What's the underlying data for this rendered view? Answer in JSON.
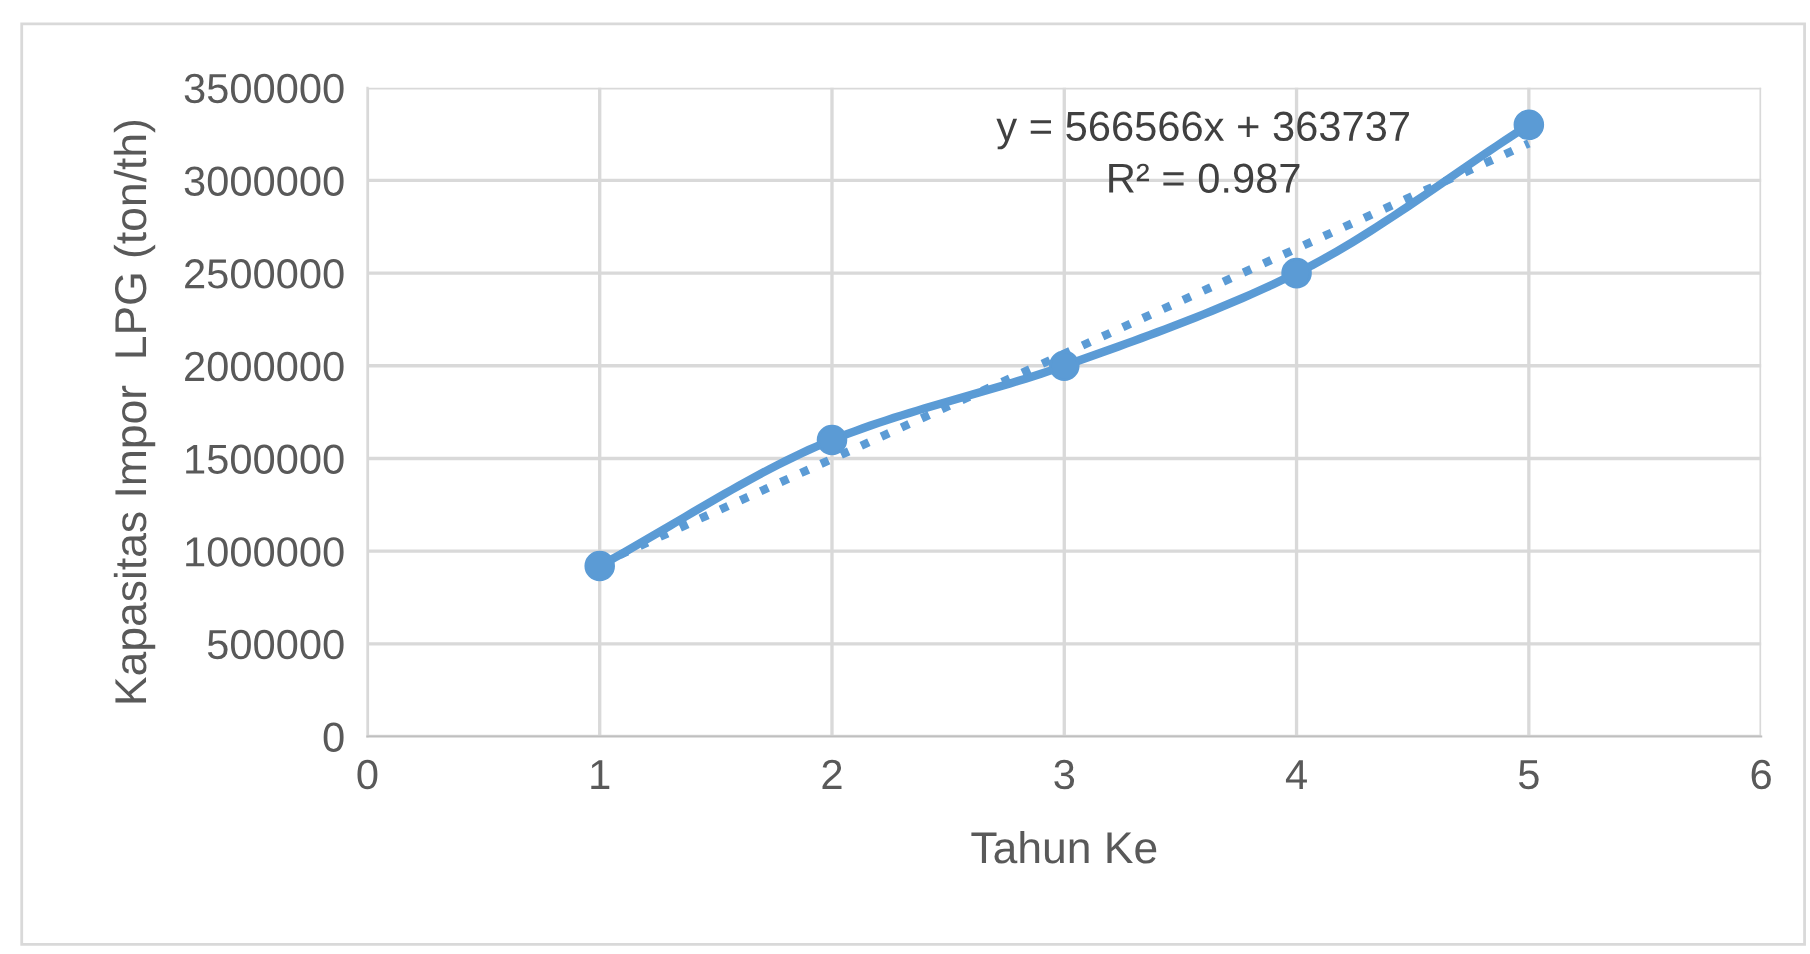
{
  "chart_data": {
    "type": "line",
    "xlabel": "Tahun Ke",
    "ylabel": "Kapasitas Impor  LPG (ton/th)",
    "series": [
      {
        "color": "#5b9bd5",
        "x": [
          1,
          2,
          3,
          4,
          5
        ],
        "values": [
          920000,
          1600000,
          2000000,
          2500000,
          3300000
        ],
        "marker": "circle",
        "line_style": "solid"
      },
      {
        "color": "#5b9bd5",
        "x": [
          1,
          5
        ],
        "values": [
          930000,
          3200000
        ],
        "marker": "none",
        "line_style": "dotted"
      }
    ],
    "annotations": [
      "y = 566566x + 363737",
      "R² = 0.987"
    ],
    "xlim": [
      0,
      6
    ],
    "xticks": [
      0,
      1,
      2,
      3,
      4,
      5,
      6
    ],
    "ylim": [
      0,
      3500000
    ],
    "yticks": [
      0,
      500000,
      1000000,
      1500000,
      2000000,
      2500000,
      3000000,
      3500000
    ],
    "grid": true,
    "legend": false
  }
}
